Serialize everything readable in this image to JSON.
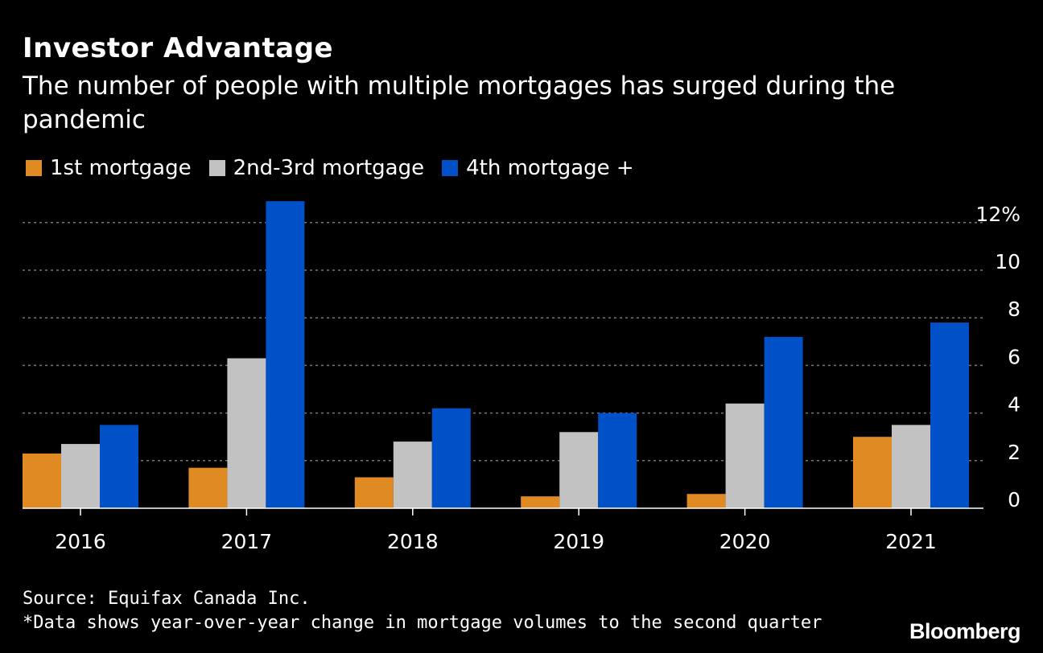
{
  "header": {
    "title": "Investor Advantage",
    "subtitle": "The number of people with multiple mortgages has surged during the pandemic"
  },
  "colors": {
    "first": "#e08a24",
    "second": "#c2c2c2",
    "fourth": "#0050c8",
    "grid": "#777777",
    "axis": "#ffffff"
  },
  "chart_data": {
    "type": "bar",
    "categories": [
      "2016",
      "2017",
      "2018",
      "2019",
      "2020",
      "2021"
    ],
    "series": [
      {
        "name": "1st mortgage",
        "values": [
          2.3,
          1.7,
          1.3,
          0.5,
          0.6,
          3.0
        ]
      },
      {
        "name": "2nd-3rd mortgage",
        "values": [
          2.7,
          6.3,
          2.8,
          3.2,
          4.4,
          3.5
        ]
      },
      {
        "name": "4th mortgage +",
        "values": [
          3.5,
          12.9,
          4.2,
          4.0,
          7.2,
          7.8
        ]
      }
    ],
    "yticks": [
      0,
      2,
      4,
      6,
      8,
      10,
      12
    ],
    "ytick_labels": [
      "0",
      "2",
      "4",
      "6",
      "8",
      "10",
      "12%"
    ],
    "ylim": [
      0,
      13
    ],
    "grid": true,
    "legend": "top-left",
    "xlabel": "",
    "ylabel": ""
  },
  "footer": {
    "source": "Source: Equifax Canada Inc.",
    "note": "*Data shows year-over-year change in mortgage volumes to the second quarter",
    "brand": "Bloomberg"
  }
}
